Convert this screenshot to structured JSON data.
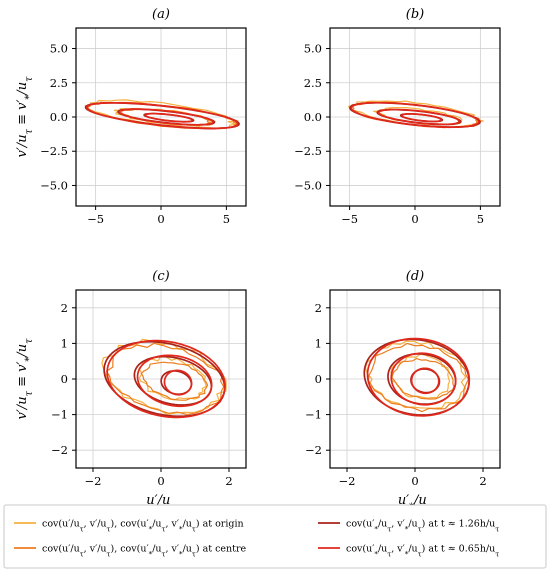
{
  "colors": {
    "origin": "#f5b041",
    "centre": "#ec7d1f",
    "t_126": "#a8231c",
    "t_065": "#e0281c",
    "grid": "#d0d0d0"
  },
  "chart_data": [
    {
      "panel": "(a)",
      "type": "line",
      "xlim": [
        -6.5,
        6.5
      ],
      "ylim": [
        -6.5,
        6.5
      ],
      "xticks": [
        -5,
        0,
        5
      ],
      "yticks": [
        -5.0,
        -2.5,
        0.0,
        2.5,
        5.0
      ],
      "xtick_labels": [
        "−5",
        "0",
        "5"
      ],
      "ytick_labels": [
        "−5.0",
        "−2.5",
        "0.0",
        "2.5",
        "5.0"
      ],
      "xlabel": "",
      "ylabel": "v′/u_τ ≡ v′_*/u_τ",
      "grid": true,
      "contours": [
        {
          "series": "origin",
          "cx": 0.0,
          "cy": 0.2,
          "a": 5.6,
          "b": 0.8,
          "angle": -6,
          "noise": 0.08
        },
        {
          "series": "origin",
          "cx": 0.3,
          "cy": 0.0,
          "a": 3.6,
          "b": 0.5,
          "angle": -6,
          "noise": 0.1
        },
        {
          "series": "centre",
          "cx": 0.1,
          "cy": 0.1,
          "a": 5.7,
          "b": 0.75,
          "angle": -6,
          "noise": 0.05
        },
        {
          "series": "centre",
          "cx": 0.4,
          "cy": 0.0,
          "a": 3.3,
          "b": 0.45,
          "angle": -6,
          "noise": 0.06
        },
        {
          "series": "t_126",
          "cx": 0.1,
          "cy": 0.1,
          "a": 5.9,
          "b": 0.7,
          "angle": -6,
          "noise": 0.0
        },
        {
          "series": "t_126",
          "cx": 0.4,
          "cy": 0.0,
          "a": 3.7,
          "b": 0.42,
          "angle": -6,
          "noise": 0.0
        },
        {
          "series": "t_126",
          "cx": 0.6,
          "cy": -0.05,
          "a": 1.9,
          "b": 0.22,
          "angle": -6,
          "noise": 0.0
        },
        {
          "series": "t_065",
          "cx": 0.1,
          "cy": 0.1,
          "a": 5.8,
          "b": 0.72,
          "angle": -6,
          "noise": 0.0
        },
        {
          "series": "t_065",
          "cx": 0.4,
          "cy": 0.0,
          "a": 3.6,
          "b": 0.44,
          "angle": -6,
          "noise": 0.0
        },
        {
          "series": "t_065",
          "cx": 0.6,
          "cy": -0.05,
          "a": 1.8,
          "b": 0.23,
          "angle": -6,
          "noise": 0.0
        }
      ]
    },
    {
      "panel": "(b)",
      "type": "line",
      "xlim": [
        -6.5,
        6.5
      ],
      "ylim": [
        -6.5,
        6.5
      ],
      "xticks": [
        -5,
        0,
        5
      ],
      "yticks": [
        -5.0,
        -2.5,
        0.0,
        2.5,
        5.0
      ],
      "xtick_labels": [
        "−5",
        "0",
        "5"
      ],
      "ytick_labels": [
        "−5.0",
        "−2.5",
        "0.0",
        "2.5",
        "5.0"
      ],
      "xlabel": "",
      "ylabel": "",
      "grid": true,
      "contours": [
        {
          "series": "origin",
          "cx": 0.0,
          "cy": 0.25,
          "a": 4.9,
          "b": 0.8,
          "angle": -6,
          "noise": 0.08
        },
        {
          "series": "origin",
          "cx": 0.3,
          "cy": 0.05,
          "a": 3.2,
          "b": 0.5,
          "angle": -6,
          "noise": 0.1
        },
        {
          "series": "centre",
          "cx": 0.0,
          "cy": 0.15,
          "a": 4.9,
          "b": 0.75,
          "angle": -6,
          "noise": 0.05
        },
        {
          "series": "centre",
          "cx": 0.3,
          "cy": 0.0,
          "a": 3.1,
          "b": 0.45,
          "angle": -6,
          "noise": 0.06
        },
        {
          "series": "t_126",
          "cx": 0.0,
          "cy": 0.15,
          "a": 5.0,
          "b": 0.72,
          "angle": -6,
          "noise": 0.0
        },
        {
          "series": "t_126",
          "cx": 0.3,
          "cy": 0.0,
          "a": 3.2,
          "b": 0.42,
          "angle": -6,
          "noise": 0.0
        },
        {
          "series": "t_126",
          "cx": 0.5,
          "cy": -0.05,
          "a": 1.6,
          "b": 0.22,
          "angle": -6,
          "noise": 0.0
        },
        {
          "series": "t_065",
          "cx": 0.0,
          "cy": 0.15,
          "a": 4.9,
          "b": 0.74,
          "angle": -6,
          "noise": 0.0
        },
        {
          "series": "t_065",
          "cx": 0.3,
          "cy": 0.0,
          "a": 3.1,
          "b": 0.44,
          "angle": -6,
          "noise": 0.0
        },
        {
          "series": "t_065",
          "cx": 0.5,
          "cy": -0.05,
          "a": 1.5,
          "b": 0.23,
          "angle": -6,
          "noise": 0.0
        }
      ]
    },
    {
      "panel": "(c)",
      "type": "line",
      "xlim": [
        -2.5,
        2.5
      ],
      "ylim": [
        -2.5,
        2.5
      ],
      "xticks": [
        -2,
        0,
        2
      ],
      "yticks": [
        -2,
        -1,
        0,
        1,
        2
      ],
      "xtick_labels": [
        "−2",
        "0",
        "2"
      ],
      "ytick_labels": [
        "−2",
        "−1",
        "0",
        "1",
        "2"
      ],
      "xlabel": "u′/u_τ",
      "ylabel": "v′/u_τ ≡ v′_*/u_τ",
      "grid": true,
      "contours": [
        {
          "series": "origin",
          "cx": 0.1,
          "cy": 0.05,
          "a": 1.75,
          "b": 0.95,
          "angle": -12,
          "noise": 0.09
        },
        {
          "series": "origin",
          "cx": 0.35,
          "cy": 0.0,
          "a": 1.0,
          "b": 0.55,
          "angle": -12,
          "noise": 0.1
        },
        {
          "series": "centre",
          "cx": 0.15,
          "cy": 0.0,
          "a": 1.7,
          "b": 0.9,
          "angle": -12,
          "noise": 0.06
        },
        {
          "series": "centre",
          "cx": 0.4,
          "cy": -0.05,
          "a": 0.95,
          "b": 0.5,
          "angle": -12,
          "noise": 0.06
        },
        {
          "series": "t_126",
          "cx": 0.1,
          "cy": 0.0,
          "a": 1.8,
          "b": 1.0,
          "angle": -12,
          "noise": 0.0
        },
        {
          "series": "t_126",
          "cx": 0.35,
          "cy": -0.05,
          "a": 1.15,
          "b": 0.65,
          "angle": -12,
          "noise": 0.0
        },
        {
          "series": "t_126",
          "cx": 0.45,
          "cy": -0.1,
          "a": 0.45,
          "b": 0.32,
          "angle": -12,
          "noise": 0.0
        },
        {
          "series": "t_065",
          "cx": 0.15,
          "cy": 0.0,
          "a": 1.75,
          "b": 1.05,
          "angle": -10,
          "noise": 0.0
        },
        {
          "series": "t_065",
          "cx": 0.4,
          "cy": -0.05,
          "a": 1.1,
          "b": 0.7,
          "angle": -10,
          "noise": 0.0
        },
        {
          "series": "t_065",
          "cx": 0.5,
          "cy": -0.1,
          "a": 0.4,
          "b": 0.34,
          "angle": -10,
          "noise": 0.0
        }
      ]
    },
    {
      "panel": "(d)",
      "type": "line",
      "xlim": [
        -2.5,
        2.5
      ],
      "ylim": [
        -2.5,
        2.5
      ],
      "xticks": [
        -2,
        0,
        2
      ],
      "yticks": [
        -2,
        -1,
        0,
        1,
        2
      ],
      "xtick_labels": [
        "−2",
        "0",
        "2"
      ],
      "ytick_labels": [
        "−2",
        "−1",
        "0",
        "1",
        "2"
      ],
      "xlabel": "u′_*/u_τ",
      "ylabel": "",
      "grid": true,
      "contours": [
        {
          "series": "origin",
          "cx": 0.05,
          "cy": 0.1,
          "a": 1.4,
          "b": 0.95,
          "angle": -8,
          "noise": 0.09
        },
        {
          "series": "origin",
          "cx": 0.2,
          "cy": 0.05,
          "a": 0.85,
          "b": 0.6,
          "angle": -8,
          "noise": 0.1
        },
        {
          "series": "centre",
          "cx": 0.1,
          "cy": 0.05,
          "a": 1.45,
          "b": 0.9,
          "angle": -8,
          "noise": 0.06
        },
        {
          "series": "centre",
          "cx": 0.25,
          "cy": 0.0,
          "a": 0.9,
          "b": 0.55,
          "angle": -8,
          "noise": 0.06
        },
        {
          "series": "t_126",
          "cx": 0.05,
          "cy": 0.05,
          "a": 1.55,
          "b": 1.05,
          "angle": -8,
          "noise": 0.0
        },
        {
          "series": "t_126",
          "cx": 0.2,
          "cy": 0.0,
          "a": 1.0,
          "b": 0.7,
          "angle": -8,
          "noise": 0.0
        },
        {
          "series": "t_126",
          "cx": 0.3,
          "cy": -0.05,
          "a": 0.42,
          "b": 0.33,
          "angle": -8,
          "noise": 0.0
        },
        {
          "series": "t_065",
          "cx": 0.1,
          "cy": 0.05,
          "a": 1.5,
          "b": 1.08,
          "angle": -6,
          "noise": 0.0
        },
        {
          "series": "t_065",
          "cx": 0.25,
          "cy": 0.0,
          "a": 0.95,
          "b": 0.72,
          "angle": -6,
          "noise": 0.0
        },
        {
          "series": "t_065",
          "cx": 0.3,
          "cy": -0.05,
          "a": 0.4,
          "b": 0.35,
          "angle": -6,
          "noise": 0.0
        }
      ]
    }
  ],
  "legend": [
    {
      "series": "origin",
      "label": "cov(u′/u_τ, v′/u_τ), cov(u′_*/u_τ, v′_*/u_τ) at origin"
    },
    {
      "series": "centre",
      "label": "cov(u′/u_τ, v′/u_τ), cov(u′_*/u_τ, v′_*/u_τ) at centre"
    },
    {
      "series": "t_126",
      "label": "cov(u′_*/u_τ, v′_*/u_τ) at t ≈ 1.26h/u_τ"
    },
    {
      "series": "t_065",
      "label": "cov(u′_*/u_τ, v′_*/u_τ) at t ≈ 0.65h/u_τ"
    }
  ]
}
